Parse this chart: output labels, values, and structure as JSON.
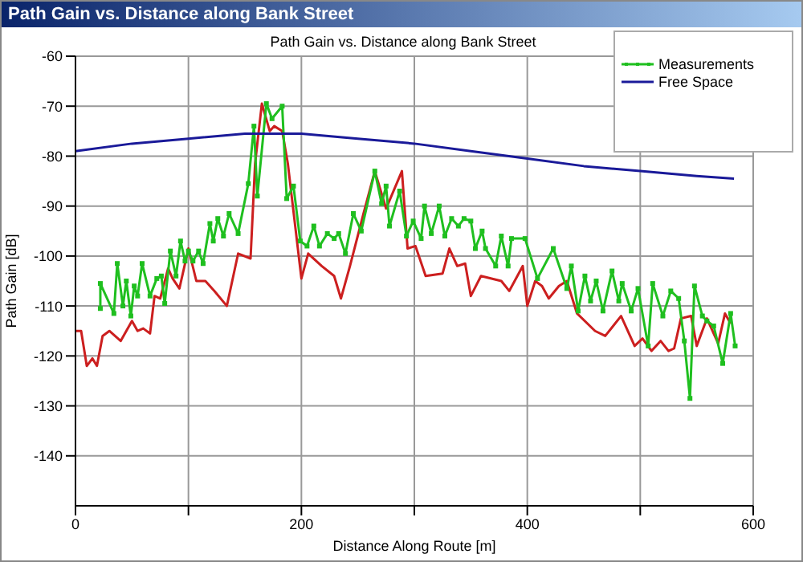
{
  "chart_data": {
    "type": "line",
    "title": "Path Gain vs. Distance along Bank Street",
    "xlabel": "Distance Along Route [m]",
    "ylabel": "Path Gain [dB]",
    "xlim": [
      0,
      600
    ],
    "xticks": [
      0,
      {
        "value": 100,
        "label": null
      },
      200,
      {
        "value": 300,
        "label": null
      },
      400,
      {
        "value": 500,
        "label": null
      },
      600
    ],
    "ylim": [
      -150,
      -60
    ],
    "yticks": [
      -140,
      -130,
      -120,
      -110,
      -100,
      -90,
      -80,
      -70,
      -60
    ],
    "grid": true,
    "legend": "top right",
    "series": [
      {
        "color": "#cc1f1f",
        "marker": "none",
        "x": [
          0,
          5,
          10,
          15,
          19,
          24,
          30,
          40,
          50,
          55,
          60,
          66,
          70,
          75,
          82,
          86,
          92,
          100,
          107,
          115,
          123,
          134,
          144,
          155,
          159,
          165,
          172,
          176,
          183,
          188,
          200,
          206,
          218,
          229,
          235,
          243,
          255,
          265,
          275,
          289,
          294,
          301,
          310,
          325,
          331,
          338,
          345,
          350,
          359,
          377,
          384,
          396,
          400,
          407,
          413,
          419,
          428,
          435,
          444,
          460,
          469,
          483,
          495,
          502,
          510,
          518,
          525,
          530,
          536,
          545,
          550,
          559,
          569,
          575,
          580
        ],
        "values": [
          -115,
          -115,
          -122,
          -120.5,
          -122,
          -116,
          -115,
          -117,
          -113,
          -115,
          -114.5,
          -115.5,
          -108,
          -108.5,
          -102.5,
          -104.5,
          -106.5,
          -98.5,
          -105,
          -105,
          -107,
          -110,
          -99.5,
          -100.5,
          -81.5,
          -69.5,
          -75,
          -74,
          -75,
          -81.5,
          -104.5,
          -99.5,
          -102,
          -104,
          -108.5,
          -102,
          -91.5,
          -83,
          -90.5,
          -83,
          -98.5,
          -98,
          -104,
          -103.5,
          -98.5,
          -102,
          -101.5,
          -108,
          -104,
          -105,
          -107,
          -102,
          -110,
          -105,
          -106,
          -108.5,
          -106,
          -105,
          -111.5,
          -115,
          -116,
          -112,
          -118,
          -116.5,
          -119,
          -117,
          -119,
          -118.5,
          -112.5,
          -112,
          -118,
          -112.5,
          -117.5,
          -111.5,
          -113.5
        ]
      },
      {
        "name": "Measurements",
        "color": "#1fbf1f",
        "marker": "square",
        "x": [
          22,
          22,
          34,
          37,
          42,
          45,
          49,
          52,
          55,
          59,
          66,
          72,
          76,
          79,
          84,
          89,
          93,
          97,
          100,
          104,
          109,
          113,
          119,
          122,
          126,
          131,
          136,
          144,
          153,
          158,
          161,
          169,
          174,
          183,
          187,
          193,
          199,
          205,
          211,
          216,
          223,
          229,
          233,
          239,
          246,
          253,
          265,
          271,
          275,
          278,
          287,
          293,
          299,
          306,
          309,
          315,
          322,
          327,
          333,
          339,
          344,
          350,
          354,
          360,
          363,
          372,
          377,
          383,
          386,
          398,
          409,
          423,
          435,
          439,
          445,
          451,
          456,
          461,
          467,
          475,
          481,
          484,
          492,
          498,
          507,
          511,
          520,
          527,
          534,
          539,
          544,
          548,
          555,
          559,
          565,
          573,
          580,
          584
        ],
        "values": [
          -110.5,
          -105.5,
          -111.5,
          -101.5,
          -110,
          -105,
          -112,
          -106,
          -108,
          -101.5,
          -108,
          -104.5,
          -104,
          -109.5,
          -99,
          -104,
          -97,
          -101,
          -99,
          -101,
          -99,
          -101.5,
          -93.5,
          -97,
          -92.5,
          -96,
          -91.5,
          -95.5,
          -85.5,
          -74,
          -88,
          -69.5,
          -72.5,
          -70,
          -88.5,
          -86,
          -97,
          -98,
          -94,
          -98,
          -95.5,
          -96.5,
          -95.5,
          -99.5,
          -91.5,
          -95,
          -83,
          -89.5,
          -86,
          -94,
          -87,
          -96,
          -93,
          -96.5,
          -90,
          -95.5,
          -90,
          -96,
          -92.5,
          -94,
          -92.5,
          -93,
          -98.5,
          -95,
          -98.5,
          -102,
          -96,
          -102,
          -96.5,
          -96.5,
          -104.5,
          -98.5,
          -106.5,
          -102,
          -111,
          -104,
          -109,
          -105,
          -111,
          -103,
          -109,
          -105.5,
          -111,
          -106.5,
          -118,
          -105.5,
          -112,
          -107,
          -108.5,
          -117,
          -128.5,
          -106,
          -112,
          -113,
          -114,
          -121.5,
          -111.5,
          -118
        ]
      },
      {
        "name": "Free Space",
        "color": "#1a1a99",
        "marker": "none",
        "x": [
          0,
          50,
          100,
          150,
          200,
          250,
          300,
          350,
          400,
          450,
          500,
          550,
          583
        ],
        "values": [
          -79,
          -77.5,
          -76.5,
          -75.5,
          -75.5,
          -76.5,
          -77.5,
          -79,
          -80.5,
          -82,
          -83,
          -84,
          -84.5
        ]
      }
    ]
  }
}
